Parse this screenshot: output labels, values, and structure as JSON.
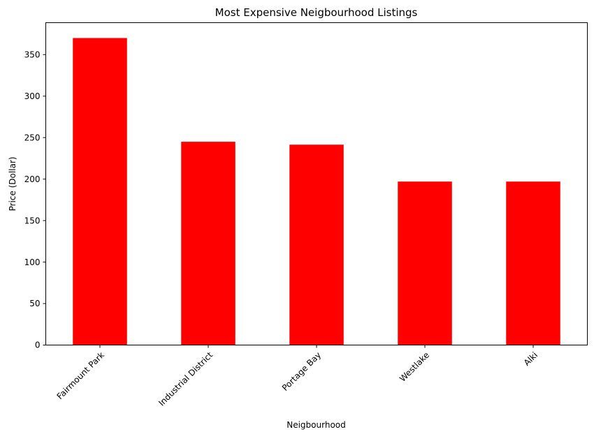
{
  "chart_data": {
    "type": "bar",
    "title": "Most Expensive Neigbourhood Listings",
    "xlabel": "Neigbourhood",
    "ylabel": "Price (Dollar)",
    "categories": [
      "Fairmount Park",
      "Industrial District",
      "Portage Bay",
      "Westlake",
      "Alki"
    ],
    "values": [
      370,
      245,
      241.5,
      197,
      197
    ],
    "ylim": [
      0,
      388.5
    ],
    "yticks": [
      0,
      50,
      100,
      150,
      200,
      250,
      300,
      350
    ],
    "bar_color": "#ff0000",
    "grid": false,
    "legend": false
  }
}
